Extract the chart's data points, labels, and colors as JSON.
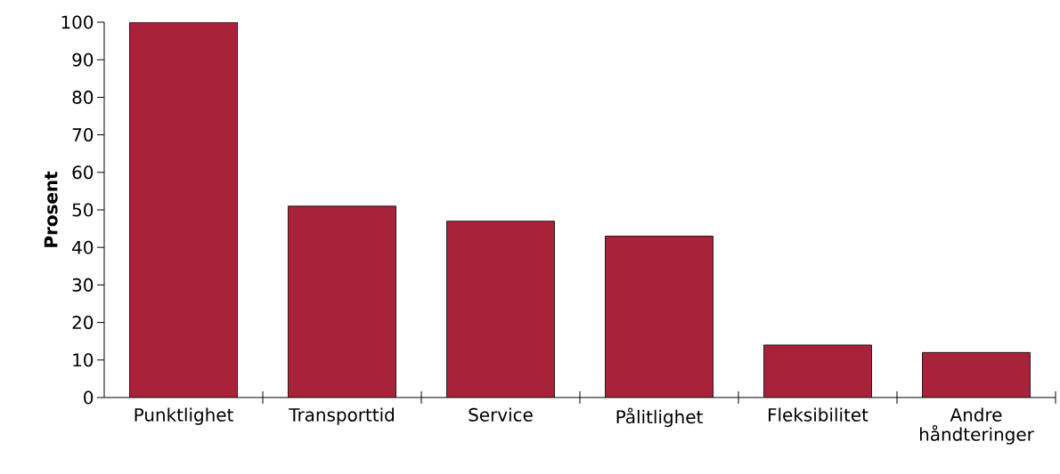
{
  "chart_data": {
    "type": "bar",
    "ylabel": "Prosent",
    "categories": [
      "Punktlighet",
      "Transporttid",
      "Service",
      "Pålitlighet",
      "Fleksibilitet",
      "Andre håndteringer"
    ],
    "values": [
      100,
      51,
      47,
      43,
      14,
      12
    ],
    "color": "#a8223a",
    "ylim": [
      0,
      100
    ],
    "yticks": [
      0,
      10,
      20,
      30,
      40,
      50,
      60,
      70,
      80,
      90,
      100
    ],
    "grid": false
  }
}
